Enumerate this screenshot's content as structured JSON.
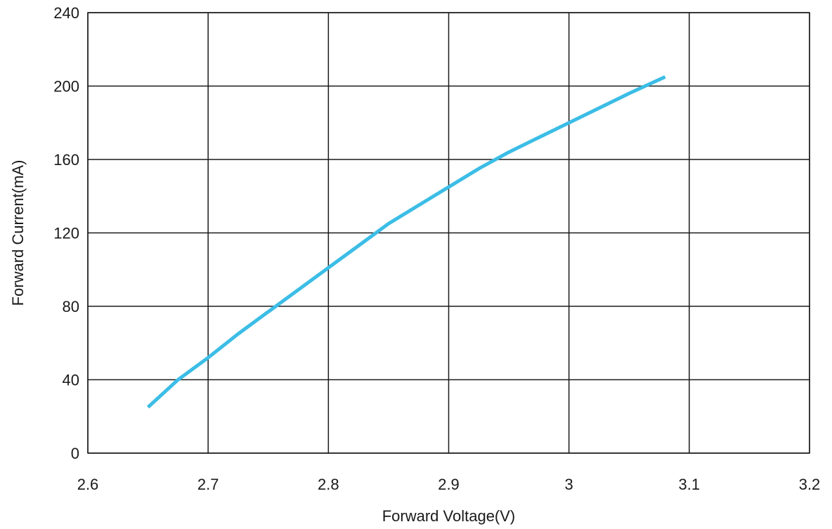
{
  "chart_data": {
    "type": "line",
    "title": "",
    "xlabel": "Forward Voltage(V)",
    "ylabel": "Forward Current(mA)",
    "xlim": [
      2.6,
      3.2
    ],
    "ylim": [
      0,
      240
    ],
    "x_ticks": [
      2.6,
      2.7,
      2.8,
      2.9,
      3.0,
      3.1,
      3.2
    ],
    "x_tick_labels": [
      "2.6",
      "2.7",
      "2.8",
      "2.9",
      "3",
      "3.1",
      "3.2"
    ],
    "y_ticks": [
      0,
      40,
      80,
      120,
      160,
      200,
      240
    ],
    "y_tick_labels": [
      "0",
      "40",
      "80",
      "120",
      "160",
      "200",
      "240"
    ],
    "grid": true,
    "legend": "none",
    "series": [
      {
        "color": "#3bbde6",
        "x": [
          2.65,
          2.675,
          2.7,
          2.725,
          2.75,
          2.775,
          2.8,
          2.825,
          2.85,
          2.875,
          2.9,
          2.925,
          2.95,
          2.975,
          3.0,
          3.025,
          3.05,
          3.08
        ],
        "y": [
          25,
          40,
          52,
          65,
          77,
          89,
          101,
          113,
          125,
          135,
          145,
          155,
          164,
          172,
          180,
          188,
          196,
          205
        ]
      }
    ]
  }
}
